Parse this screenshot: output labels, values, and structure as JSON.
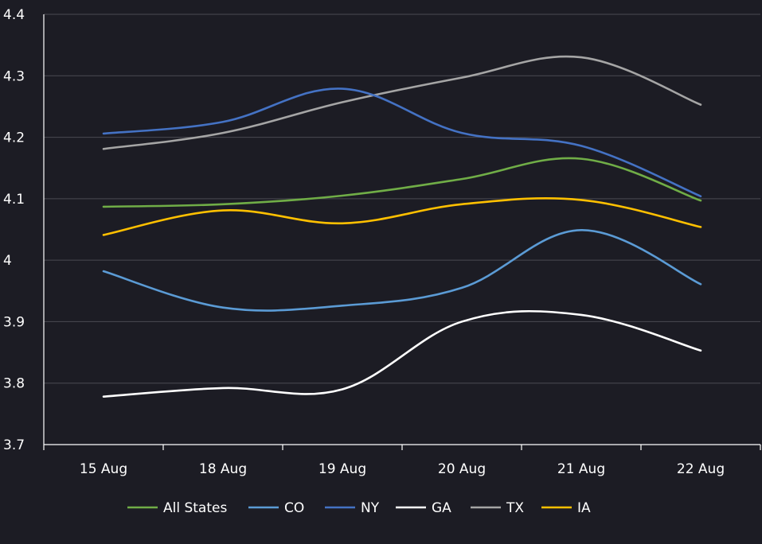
{
  "chart_data": {
    "type": "line",
    "categories": [
      "15 Aug",
      "18 Aug",
      "19 Aug",
      "20 Aug",
      "21 Aug",
      "22 Aug"
    ],
    "ylim": [
      3.7,
      4.4
    ],
    "yticks": [
      "3.7",
      "3.8",
      "3.9",
      "4",
      "4.1",
      "4.2",
      "4.3",
      "4.4"
    ],
    "grid": "horizontal",
    "legend_position": "bottom",
    "series": [
      {
        "name": "All States",
        "color": "#70ad47",
        "values": [
          4.087,
          4.091,
          4.105,
          4.132,
          4.165,
          4.097
        ]
      },
      {
        "name": "CO",
        "color": "#5b9bd5",
        "values": [
          3.982,
          3.923,
          3.926,
          3.955,
          4.049,
          3.961
        ]
      },
      {
        "name": "NY",
        "color": "#4472c4",
        "values": [
          4.206,
          4.225,
          4.279,
          4.207,
          4.186,
          4.104
        ]
      },
      {
        "name": "GA",
        "color": "#ffffff",
        "values": [
          3.778,
          3.792,
          3.79,
          3.9,
          3.911,
          3.853
        ]
      },
      {
        "name": "TX",
        "color": "#a5a5a5",
        "values": [
          4.181,
          4.207,
          4.257,
          4.297,
          4.33,
          4.253
        ]
      },
      {
        "name": "IA",
        "color": "#ffc000",
        "values": [
          4.041,
          4.081,
          4.06,
          4.091,
          4.098,
          4.054
        ]
      }
    ]
  }
}
